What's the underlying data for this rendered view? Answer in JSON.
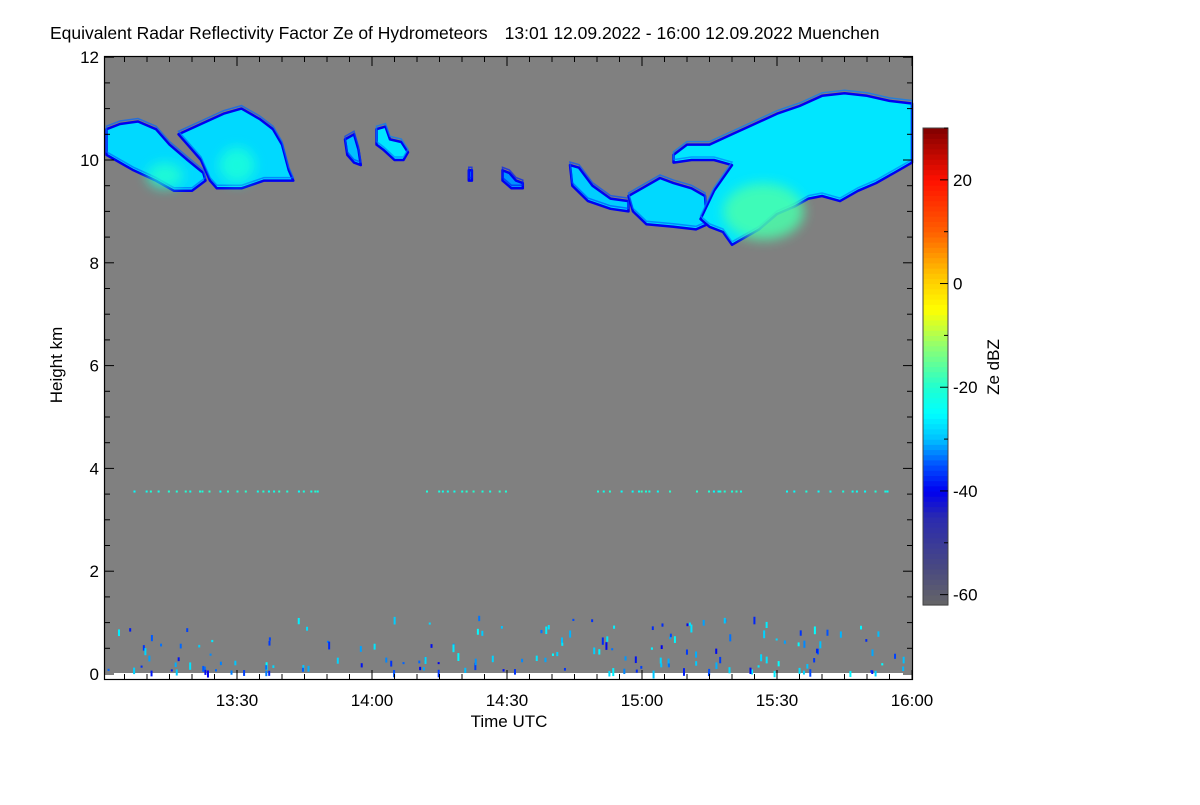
{
  "chart_data": {
    "type": "heatmap",
    "title": "Equivalent Radar Reflectivity Factor Ze of Hydrometeors",
    "time_range_label": "13:01 12.09.2022 - 16:00 12.09.2022",
    "location": "Muenchen",
    "xlabel": "Time UTC",
    "ylabel": "Height km",
    "colorbar_label": "Ze dBZ",
    "x_units": "minutes after 13:00 UTC",
    "xlim": [
      0,
      180
    ],
    "ylim": [
      0,
      12
    ],
    "x_ticks": [
      {
        "v": 30,
        "label": "13:30"
      },
      {
        "v": 60,
        "label": "14:00"
      },
      {
        "v": 90,
        "label": "14:30"
      },
      {
        "v": 120,
        "label": "15:00"
      },
      {
        "v": 150,
        "label": "15:30"
      },
      {
        "v": 180,
        "label": "16:00"
      }
    ],
    "y_ticks": [
      {
        "v": 0,
        "label": "0"
      },
      {
        "v": 2,
        "label": "2"
      },
      {
        "v": 4,
        "label": "4"
      },
      {
        "v": 6,
        "label": "6"
      },
      {
        "v": 8,
        "label": "8"
      },
      {
        "v": 10,
        "label": "10"
      },
      {
        "v": 12,
        "label": "12"
      }
    ],
    "colorbar_range": [
      -62,
      30
    ],
    "colorbar_ticks": [
      {
        "v": 20,
        "label": "20"
      },
      {
        "v": 0,
        "label": "0"
      },
      {
        "v": -20,
        "label": "-20"
      },
      {
        "v": -40,
        "label": "-40"
      },
      {
        "v": -60,
        "label": "-60"
      }
    ],
    "colormap": [
      [
        -62,
        "#666666"
      ],
      [
        -55,
        "#4a4a80"
      ],
      [
        -45,
        "#2a2ab0"
      ],
      [
        -40,
        "#0000f0"
      ],
      [
        -35,
        "#0050ff"
      ],
      [
        -30,
        "#00c0ff"
      ],
      [
        -25,
        "#00ffff"
      ],
      [
        -20,
        "#20ffd0"
      ],
      [
        -12,
        "#90ff70"
      ],
      [
        -5,
        "#ffff00"
      ],
      [
        2,
        "#ffc000"
      ],
      [
        10,
        "#ff6000"
      ],
      [
        20,
        "#ff1000"
      ],
      [
        30,
        "#800000"
      ]
    ],
    "background_color": "#808080",
    "cloud_regions": [
      {
        "name": "cirrus-1",
        "edge_dbz": -40,
        "mean_dbz": -28,
        "core_dbz": -20,
        "core": [
          14,
          9.7,
          4,
          0.25
        ],
        "outline": [
          [
            1,
            10.6
          ],
          [
            4,
            10.7
          ],
          [
            8,
            10.75
          ],
          [
            12,
            10.6
          ],
          [
            15,
            10.3
          ],
          [
            19,
            10.0
          ],
          [
            22.5,
            9.75
          ],
          [
            23,
            9.6
          ],
          [
            20,
            9.4
          ],
          [
            16,
            9.4
          ],
          [
            12,
            9.6
          ],
          [
            7,
            9.8
          ],
          [
            3,
            10.0
          ],
          [
            1,
            10.1
          ]
        ]
      },
      {
        "name": "cirrus-2",
        "edge_dbz": -40,
        "mean_dbz": -28,
        "core_dbz": -21,
        "core": [
          30,
          9.9,
          4,
          0.35
        ],
        "outline": [
          [
            17,
            10.5
          ],
          [
            22,
            10.7
          ],
          [
            27,
            10.9
          ],
          [
            31,
            11.0
          ],
          [
            35,
            10.8
          ],
          [
            38,
            10.6
          ],
          [
            40,
            10.3
          ],
          [
            41.5,
            9.8
          ],
          [
            42.5,
            9.6
          ],
          [
            40,
            9.6
          ],
          [
            36,
            9.6
          ],
          [
            31,
            9.45
          ],
          [
            25.5,
            9.45
          ],
          [
            24,
            9.6
          ],
          [
            22,
            10.0
          ],
          [
            19,
            10.3
          ]
        ]
      },
      {
        "name": "cirrus-3",
        "edge_dbz": -40,
        "mean_dbz": -30,
        "outline": [
          [
            54,
            10.4
          ],
          [
            56,
            10.5
          ],
          [
            57,
            10.2
          ],
          [
            57.5,
            9.9
          ],
          [
            56,
            9.95
          ],
          [
            54.5,
            10.1
          ]
        ]
      },
      {
        "name": "cirrus-4",
        "edge_dbz": -40,
        "mean_dbz": -27,
        "outline": [
          [
            61,
            10.6
          ],
          [
            63,
            10.65
          ],
          [
            64,
            10.4
          ],
          [
            66.5,
            10.35
          ],
          [
            68,
            10.15
          ],
          [
            67,
            10.0
          ],
          [
            65,
            10.0
          ],
          [
            62.5,
            10.2
          ],
          [
            61,
            10.3
          ]
        ]
      },
      {
        "name": "cirrus-5",
        "edge_dbz": -40,
        "mean_dbz": -32,
        "outline": [
          [
            81.5,
            9.8
          ],
          [
            82.2,
            9.8
          ],
          [
            82.2,
            9.6
          ],
          [
            81.5,
            9.6
          ]
        ]
      },
      {
        "name": "cirrus-6",
        "edge_dbz": -40,
        "mean_dbz": -32,
        "outline": [
          [
            89,
            9.8
          ],
          [
            90.5,
            9.75
          ],
          [
            92,
            9.6
          ],
          [
            93.5,
            9.55
          ],
          [
            93.5,
            9.45
          ],
          [
            91,
            9.45
          ],
          [
            89,
            9.6
          ]
        ]
      },
      {
        "name": "cirrus-7",
        "edge_dbz": -40,
        "mean_dbz": -29,
        "outline": [
          [
            104,
            9.9
          ],
          [
            106,
            9.85
          ],
          [
            109,
            9.5
          ],
          [
            113,
            9.25
          ],
          [
            117,
            9.2
          ],
          [
            117,
            9.0
          ],
          [
            113,
            9.05
          ],
          [
            108,
            9.2
          ],
          [
            104.5,
            9.5
          ]
        ]
      },
      {
        "name": "cirrus-8",
        "edge_dbz": -40,
        "mean_dbz": -28,
        "outline": [
          [
            117,
            9.3
          ],
          [
            120,
            9.45
          ],
          [
            124,
            9.65
          ],
          [
            127,
            9.55
          ],
          [
            131,
            9.45
          ],
          [
            134,
            9.3
          ],
          [
            134.5,
            8.75
          ],
          [
            132,
            8.65
          ],
          [
            127,
            8.7
          ],
          [
            121,
            8.75
          ],
          [
            118,
            9.0
          ]
        ]
      },
      {
        "name": "cirrus-9",
        "edge_dbz": -40,
        "mean_dbz": -27,
        "core_dbz": -17,
        "core": [
          147,
          9.0,
          9,
          0.55
        ],
        "outline": [
          [
            127,
            10.1
          ],
          [
            130,
            10.3
          ],
          [
            135,
            10.3
          ],
          [
            140,
            10.5
          ],
          [
            145,
            10.7
          ],
          [
            150,
            10.9
          ],
          [
            155,
            11.05
          ],
          [
            160,
            11.25
          ],
          [
            165,
            11.3
          ],
          [
            170,
            11.25
          ],
          [
            175,
            11.15
          ],
          [
            180,
            11.1
          ],
          [
            180,
            9.95
          ],
          [
            176,
            9.75
          ],
          [
            172,
            9.55
          ],
          [
            168,
            9.4
          ],
          [
            164,
            9.2
          ],
          [
            160,
            9.3
          ],
          [
            157,
            9.25
          ],
          [
            154,
            9.1
          ],
          [
            150,
            8.95
          ],
          [
            146,
            8.65
          ],
          [
            143,
            8.5
          ],
          [
            140,
            8.35
          ],
          [
            138,
            8.6
          ],
          [
            135,
            8.7
          ],
          [
            133,
            8.85
          ],
          [
            136,
            9.4
          ],
          [
            140,
            9.9
          ],
          [
            136,
            10.0
          ],
          [
            131,
            10.0
          ],
          [
            127,
            9.95
          ]
        ]
      }
    ],
    "speckle_layer": {
      "height_km": 3.55,
      "dbz": -25,
      "segments": [
        [
          7,
          48
        ],
        [
          72,
          90
        ],
        [
          110,
          127
        ],
        [
          132,
          143
        ],
        [
          152,
          176
        ]
      ]
    },
    "clutter": {
      "max_height_km": 1.1,
      "dbz_range": [
        -40,
        -25
      ]
    }
  }
}
